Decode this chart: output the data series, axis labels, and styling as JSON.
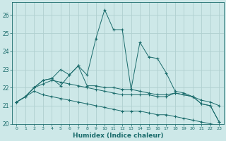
{
  "xlabel": "Humidex (Indice chaleur)",
  "xlim": [
    -0.5,
    23.5
  ],
  "ylim": [
    20.0,
    26.7
  ],
  "yticks": [
    20,
    21,
    22,
    23,
    24,
    25,
    26
  ],
  "xticks": [
    0,
    1,
    2,
    3,
    4,
    5,
    6,
    7,
    8,
    9,
    10,
    11,
    12,
    13,
    14,
    15,
    16,
    17,
    18,
    19,
    20,
    21,
    22,
    23
  ],
  "bg_color": "#cde8e8",
  "grid_color": "#b0d0d0",
  "line_color": "#1a6b6b",
  "line1_x": [
    0,
    1,
    2,
    3,
    4,
    5,
    6,
    7,
    8,
    9,
    10,
    11,
    12,
    13,
    14,
    15,
    16,
    17,
    18,
    19,
    20,
    21,
    22,
    23
  ],
  "line1_y": [
    21.2,
    21.5,
    22.0,
    22.4,
    22.5,
    23.0,
    22.7,
    23.2,
    22.7,
    24.7,
    26.3,
    25.2,
    25.2,
    21.9,
    24.5,
    23.7,
    23.6,
    22.8,
    21.8,
    21.7,
    21.5,
    21.1,
    21.0,
    20.1
  ],
  "line2_x": [
    0,
    1,
    2,
    3,
    4,
    5,
    6,
    7,
    8,
    9,
    10,
    11,
    12,
    13,
    14,
    15,
    16,
    17,
    18,
    19,
    20,
    21,
    22,
    23
  ],
  "line2_y": [
    21.2,
    21.5,
    22.0,
    22.4,
    22.5,
    22.1,
    22.7,
    23.2,
    22.1,
    22.1,
    22.0,
    22.0,
    21.9,
    21.9,
    21.8,
    21.7,
    21.6,
    21.6,
    21.7,
    21.6,
    21.5,
    21.1,
    21.0,
    20.1
  ],
  "line3_x": [
    0,
    1,
    2,
    3,
    4,
    5,
    6,
    7,
    8,
    9,
    10,
    11,
    12,
    13,
    14,
    15,
    16,
    17,
    18,
    19,
    20,
    21,
    22,
    23
  ],
  "line3_y": [
    21.2,
    21.5,
    22.0,
    22.2,
    22.4,
    22.3,
    22.2,
    22.1,
    22.0,
    21.9,
    21.8,
    21.7,
    21.6,
    21.6,
    21.6,
    21.6,
    21.5,
    21.5,
    21.7,
    21.6,
    21.5,
    21.3,
    21.2,
    21.0
  ],
  "line4_x": [
    0,
    1,
    2,
    3,
    4,
    5,
    6,
    7,
    8,
    9,
    10,
    11,
    12,
    13,
    14,
    15,
    16,
    17,
    18,
    19,
    20,
    21,
    22,
    23
  ],
  "line4_y": [
    21.2,
    21.5,
    21.8,
    21.6,
    21.5,
    21.4,
    21.3,
    21.2,
    21.1,
    21.0,
    20.9,
    20.8,
    20.7,
    20.7,
    20.7,
    20.6,
    20.5,
    20.5,
    20.4,
    20.3,
    20.2,
    20.1,
    20.0,
    19.9
  ]
}
